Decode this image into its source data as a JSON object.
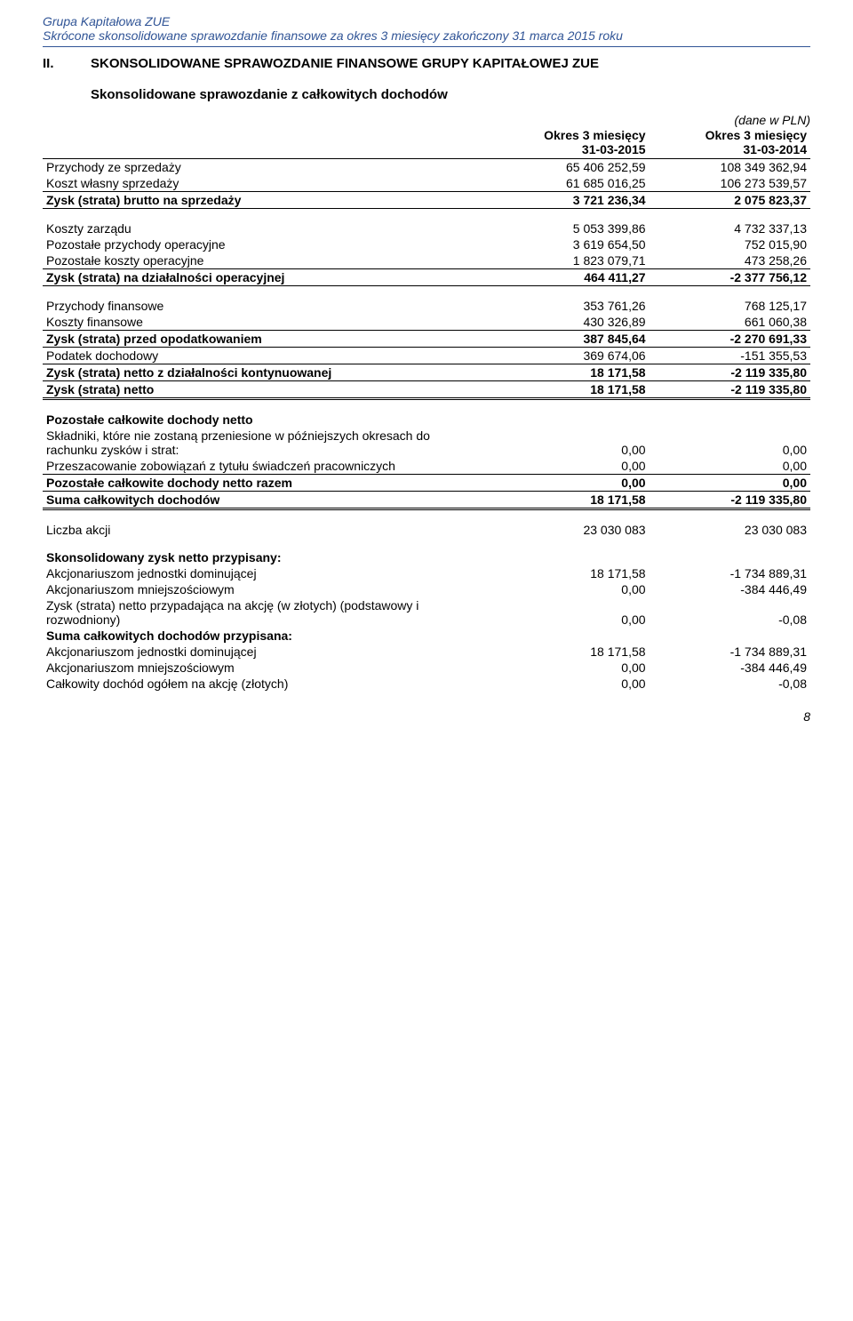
{
  "header": {
    "company": "Grupa Kapitałowa ZUE",
    "report": "Skrócone skonsolidowane sprawozdanie finansowe za okres 3 miesięcy zakończony 31 marca 2015 roku"
  },
  "section": {
    "number": "II.",
    "title": "SKONSOLIDOWANE SPRAWOZDANIE FINANSOWE GRUPY KAPITAŁOWEJ ZUE",
    "subtitle": "Skonsolidowane sprawozdanie z całkowitych dochodów"
  },
  "currency_note": "(dane w PLN)",
  "table": {
    "col_headers": [
      "",
      "Okres 3 miesięcy\n31-03-2015",
      "Okres 3 miesięcy\n31-03-2014"
    ],
    "rows": [
      {
        "label": "Przychody ze sprzedaży",
        "v1": "65 406 252,59",
        "v2": "108 349 362,94",
        "bold": false,
        "bt": false,
        "bb": false,
        "spacer": false
      },
      {
        "label": "Koszt własny sprzedaży",
        "v1": "61 685 016,25",
        "v2": "106 273 539,57",
        "bold": false,
        "bt": false,
        "bb": false,
        "spacer": false
      },
      {
        "label": "Zysk (strata) brutto na sprzedaży",
        "v1": "3 721 236,34",
        "v2": "2 075 823,37",
        "bold": true,
        "bt": true,
        "bb": true,
        "spacer": false
      },
      {
        "label": "Koszty zarządu",
        "v1": "5 053 399,86",
        "v2": "4 732 337,13",
        "bold": false,
        "bt": false,
        "bb": false,
        "spacer": true
      },
      {
        "label": "Pozostałe przychody operacyjne",
        "v1": "3 619 654,50",
        "v2": "752 015,90",
        "bold": false,
        "bt": false,
        "bb": false,
        "spacer": false
      },
      {
        "label": "Pozostałe koszty operacyjne",
        "v1": "1 823 079,71",
        "v2": "473 258,26",
        "bold": false,
        "bt": false,
        "bb": false,
        "spacer": false
      },
      {
        "label": "Zysk (strata) na działalności operacyjnej",
        "v1": "464 411,27",
        "v2": "-2 377 756,12",
        "bold": true,
        "bt": true,
        "bb": true,
        "spacer": false
      },
      {
        "label": "Przychody finansowe",
        "v1": "353 761,26",
        "v2": "768 125,17",
        "bold": false,
        "bt": false,
        "bb": false,
        "spacer": true
      },
      {
        "label": "Koszty finansowe",
        "v1": "430 326,89",
        "v2": "661 060,38",
        "bold": false,
        "bt": false,
        "bb": false,
        "spacer": false
      },
      {
        "label": "Zysk (strata) przed opodatkowaniem",
        "v1": "387 845,64",
        "v2": "-2 270 691,33",
        "bold": true,
        "bt": true,
        "bb": true,
        "spacer": false
      },
      {
        "label": "Podatek dochodowy",
        "v1": "369 674,06",
        "v2": "-151 355,53",
        "bold": false,
        "bt": false,
        "bb": false,
        "spacer": false
      },
      {
        "label": "Zysk (strata) netto z działalności kontynuowanej",
        "v1": "18 171,58",
        "v2": "-2 119 335,80",
        "bold": true,
        "bt": true,
        "bb": true,
        "spacer": false
      },
      {
        "label": "Zysk (strata) netto",
        "v1": "18 171,58",
        "v2": "-2 119 335,80",
        "bold": true,
        "bt": false,
        "bb": false,
        "double": true,
        "spacer": false
      },
      {
        "label": "Pozostałe całkowite dochody netto",
        "v1": "",
        "v2": "",
        "bold": true,
        "bt": false,
        "bb": false,
        "spacer": true
      },
      {
        "label": "Składniki, które nie zostaną przeniesione w późniejszych okresach do rachunku zysków i strat:",
        "v1": "0,00",
        "v2": "0,00",
        "bold": false,
        "bt": false,
        "bb": false,
        "spacer": false
      },
      {
        "label": "Przeszacowanie zobowiązań z tytułu świadczeń pracowniczych",
        "v1": "0,00",
        "v2": "0,00",
        "bold": false,
        "bt": false,
        "bb": false,
        "spacer": false
      },
      {
        "label": "Pozostałe całkowite dochody netto razem",
        "v1": "0,00",
        "v2": "0,00",
        "bold": true,
        "bt": true,
        "bb": true,
        "spacer": false
      },
      {
        "label": "Suma całkowitych dochodów",
        "v1": "18 171,58",
        "v2": "-2 119 335,80",
        "bold": true,
        "bt": false,
        "bb": false,
        "double": true,
        "spacer": false
      },
      {
        "label": "Liczba akcji",
        "v1": "23 030 083",
        "v2": "23 030 083",
        "bold": false,
        "bt": false,
        "bb": false,
        "spacer": true
      },
      {
        "label": "Skonsolidowany zysk netto przypisany:",
        "v1": "",
        "v2": "",
        "bold": true,
        "bt": false,
        "bb": false,
        "spacer": true
      },
      {
        "label": "Akcjonariuszom jednostki dominującej",
        "v1": "18 171,58",
        "v2": "-1 734 889,31",
        "bold": false,
        "bt": false,
        "bb": false,
        "spacer": false
      },
      {
        "label": "Akcjonariuszom mniejszościowym",
        "v1": "0,00",
        "v2": "-384 446,49",
        "bold": false,
        "bt": false,
        "bb": false,
        "spacer": false
      },
      {
        "label": "Zysk (strata) netto przypadająca na akcję (w złotych) (podstawowy i rozwodniony)",
        "v1": "0,00",
        "v2": "-0,08",
        "bold": false,
        "bt": false,
        "bb": false,
        "spacer": false
      },
      {
        "label": "Suma całkowitych dochodów przypisana:",
        "v1": "",
        "v2": "",
        "bold": true,
        "bt": false,
        "bb": false,
        "spacer": false
      },
      {
        "label": "Akcjonariuszom jednostki dominującej",
        "v1": "18 171,58",
        "v2": "-1 734 889,31",
        "bold": false,
        "bt": false,
        "bb": false,
        "spacer": false
      },
      {
        "label": "Akcjonariuszom mniejszościowym",
        "v1": "0,00",
        "v2": "-384 446,49",
        "bold": false,
        "bt": false,
        "bb": false,
        "spacer": false
      },
      {
        "label": "Całkowity dochód ogółem na akcję (złotych)",
        "v1": "0,00",
        "v2": "-0,08",
        "bold": false,
        "bt": false,
        "bb": false,
        "spacer": false
      }
    ]
  },
  "page_number": "8"
}
